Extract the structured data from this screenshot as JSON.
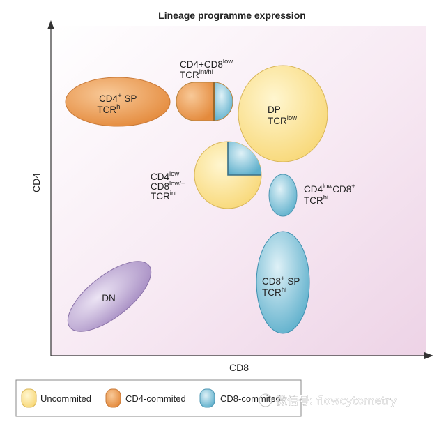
{
  "title": "Lineage programme expression",
  "axes": {
    "x_label": "CD8",
    "y_label": "CD4"
  },
  "populations": {
    "cd4_sp": {
      "main": "CD4",
      "sup1": "+",
      "tail": " SP",
      "line2_main": "TCR",
      "line2_sup": "hi"
    },
    "cd4_cd8low": {
      "l1_a": "CD4+CD8",
      "l1_sup": "low",
      "l2_main": "TCR",
      "l2_sup": "int/hi"
    },
    "dp": {
      "line1": "DP",
      "line2_main": "TCR",
      "line2_sup": "low"
    },
    "cd4low_cd8low": {
      "l1_main": "CD4",
      "l1_sup": "low",
      "l2_main": "CD8",
      "l2_sup": "low/+",
      "l3_main": "TCR",
      "l3_sup": "int"
    },
    "cd4low_cd8plus": {
      "l1_a": "CD4",
      "l1_sup1": "low",
      "l1_b": "CD8",
      "l1_sup2": "+",
      "l2_main": "TCR",
      "l2_sup": "hi"
    },
    "cd8_sp": {
      "main": "CD8",
      "sup1": "+",
      "tail": " SP",
      "line2_main": "TCR",
      "line2_sup": "hi"
    },
    "dn": {
      "label": "DN"
    }
  },
  "legend": {
    "uncommitted": "Uncommited",
    "cd4": "CD4-commited",
    "cd8": "CD8-commited"
  },
  "watermark": "微信号: flowcytometry",
  "colors": {
    "uncommitted": "#fce49c",
    "cd4_committed": "#eca25c",
    "cd8_committed": "#7ec0d6",
    "dn": "#b9a4cf"
  }
}
